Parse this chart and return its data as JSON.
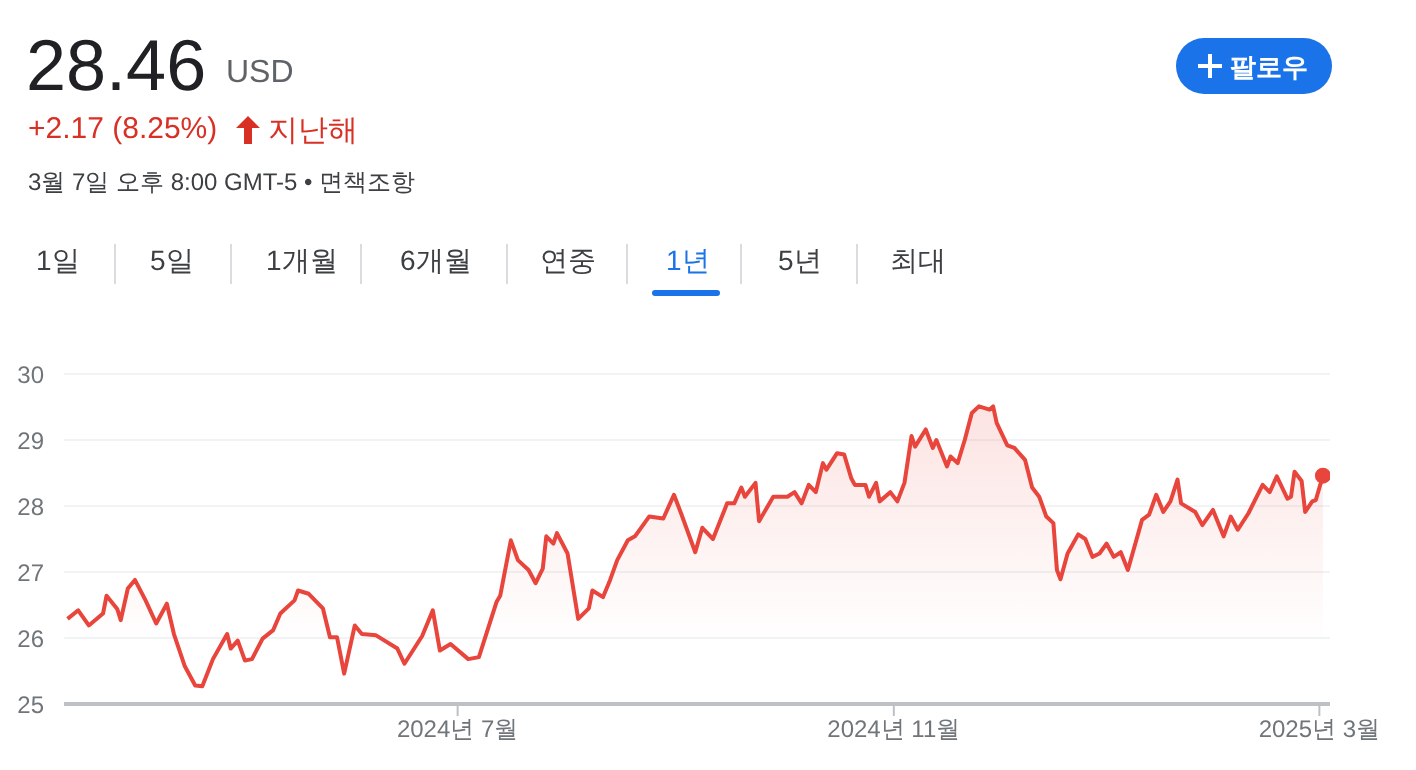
{
  "chart_data": {
    "type": "area",
    "title": "28.46",
    "subtitle": "+2.17 (8.25%)",
    "annotations": [
      "USD",
      "지난해",
      "3월 7일 오후 8:00 GMT-5 • 면책조항",
      "팔로우",
      "1일",
      "5일",
      "1개월",
      "6개월",
      "연중",
      "1년",
      "5년",
      "최대"
    ],
    "x": [
      "2024-03-13",
      "2024-03-16",
      "2024-03-19",
      "2024-03-23",
      "2024-03-24",
      "2024-03-27",
      "2024-03-28",
      "2024-03-30",
      "2024-04-01",
      "2024-04-04",
      "2024-04-07",
      "2024-04-10",
      "2024-04-12",
      "2024-04-15",
      "2024-04-18",
      "2024-04-20",
      "2024-04-23",
      "2024-04-27",
      "2024-04-28",
      "2024-04-30",
      "2024-05-02",
      "2024-05-04",
      "2024-05-07",
      "2024-05-10",
      "2024-05-12",
      "2024-05-16",
      "2024-05-17",
      "2024-05-20",
      "2024-05-24",
      "2024-05-26",
      "2024-05-28",
      "2024-05-30",
      "2024-06-02",
      "2024-06-04",
      "2024-06-08",
      "2024-06-14",
      "2024-06-16",
      "2024-06-21",
      "2024-06-24",
      "2024-06-26",
      "2024-06-29",
      "2024-07-04",
      "2024-07-07",
      "2024-07-12",
      "2024-07-13",
      "2024-07-16",
      "2024-07-18",
      "2024-07-21",
      "2024-07-23",
      "2024-07-25",
      "2024-07-26",
      "2024-07-28",
      "2024-07-29",
      "2024-08-01",
      "2024-08-04",
      "2024-08-07",
      "2024-08-08",
      "2024-08-11",
      "2024-08-13",
      "2024-08-15",
      "2024-08-18",
      "2024-08-20",
      "2024-08-24",
      "2024-08-28",
      "2024-08-31",
      "2024-09-02",
      "2024-09-06",
      "2024-09-08",
      "2024-09-11",
      "2024-09-15",
      "2024-09-17",
      "2024-09-19",
      "2024-09-20",
      "2024-09-23",
      "2024-09-24",
      "2024-09-28",
      "2024-10-02",
      "2024-10-04",
      "2024-10-06",
      "2024-10-08",
      "2024-10-10",
      "2024-10-12",
      "2024-10-13",
      "2024-10-16",
      "2024-10-18",
      "2024-10-20",
      "2024-10-21",
      "2024-10-24",
      "2024-10-25",
      "2024-10-27",
      "2024-10-28",
      "2024-10-31",
      "2024-11-02",
      "2024-11-04",
      "2024-11-06",
      "2024-11-07",
      "2024-11-10",
      "2024-11-12",
      "2024-11-13",
      "2024-11-16",
      "2024-11-17",
      "2024-11-19",
      "2024-11-21",
      "2024-11-23",
      "2024-11-25",
      "2024-11-28",
      "2024-11-29",
      "2024-11-30",
      "2024-12-03",
      "2024-12-05",
      "2024-12-08",
      "2024-12-10",
      "2024-12-12",
      "2024-12-14",
      "2024-12-16",
      "2024-12-17",
      "2024-12-18",
      "2024-12-20",
      "2024-12-23",
      "2024-12-25",
      "2024-12-27",
      "2024-12-29",
      "2024-12-31",
      "2025-01-02",
      "2025-01-04",
      "2025-01-06",
      "2025-01-10",
      "2025-01-12",
      "2025-01-14",
      "2025-01-16",
      "2025-01-18",
      "2025-01-20",
      "2025-01-21",
      "2025-01-25",
      "2025-01-27",
      "2025-01-30",
      "2025-02-02",
      "2025-02-04",
      "2025-02-06",
      "2025-02-09",
      "2025-02-13",
      "2025-02-15",
      "2025-02-17",
      "2025-02-20",
      "2025-02-21",
      "2025-02-22",
      "2025-02-24",
      "2025-02-25",
      "2025-02-27",
      "2025-02-28",
      "2025-03-02"
    ],
    "series": [
      {
        "color": "#e8453c",
        "values": [
          26.29,
          26.42,
          26.19,
          26.37,
          26.64,
          26.44,
          26.27,
          26.75,
          26.88,
          26.57,
          26.22,
          26.52,
          26.06,
          25.58,
          25.28,
          25.27,
          25.68,
          26.06,
          25.84,
          25.96,
          25.66,
          25.68,
          25.99,
          26.12,
          26.37,
          26.57,
          26.72,
          26.67,
          26.45,
          26.01,
          26.01,
          25.46,
          26.19,
          26.06,
          26.04,
          25.84,
          25.61,
          26.03,
          26.42,
          25.81,
          25.91,
          25.68,
          25.71,
          26.55,
          26.64,
          27.48,
          27.18,
          27.03,
          26.83,
          27.05,
          27.54,
          27.43,
          27.59,
          27.28,
          26.29,
          26.45,
          26.72,
          26.62,
          26.88,
          27.18,
          27.48,
          27.54,
          27.84,
          27.81,
          28.17,
          27.89,
          27.3,
          27.67,
          27.5,
          28.04,
          28.04,
          28.28,
          28.14,
          28.35,
          27.77,
          28.14,
          28.14,
          28.21,
          28.04,
          28.32,
          28.21,
          28.65,
          28.55,
          28.8,
          28.78,
          28.42,
          28.32,
          28.32,
          28.14,
          28.35,
          28.07,
          28.21,
          28.07,
          28.35,
          29.06,
          28.9,
          29.16,
          28.88,
          29.0,
          28.6,
          28.75,
          28.65,
          29.0,
          29.41,
          29.51,
          29.46,
          29.51,
          29.26,
          28.92,
          28.88,
          28.7,
          28.28,
          28.14,
          27.84,
          27.74,
          27.03,
          26.89,
          27.28,
          27.57,
          27.5,
          27.23,
          27.28,
          27.43,
          27.23,
          27.3,
          27.03,
          27.79,
          27.87,
          28.17,
          27.91,
          28.07,
          28.4,
          28.04,
          27.91,
          27.71,
          27.94,
          27.54,
          27.84,
          27.64,
          27.89,
          28.32,
          28.21,
          28.45,
          28.11,
          28.14,
          28.52,
          28.38,
          27.91,
          28.07,
          28.09,
          28.46
        ]
      }
    ],
    "xlim": [
      "2024-03-12",
      "2025-03-04"
    ],
    "xticks": [
      {
        "value": "2024-07-01",
        "label": "2024년 7월"
      },
      {
        "value": "2024-11-01",
        "label": "2024년 11월"
      },
      {
        "value": "2025-03-01",
        "label": "2025년 3월"
      }
    ],
    "ylim": [
      25,
      30
    ],
    "yticks": [
      25,
      26,
      27,
      28,
      29,
      30
    ],
    "grid": "y",
    "legend": false
  }
}
